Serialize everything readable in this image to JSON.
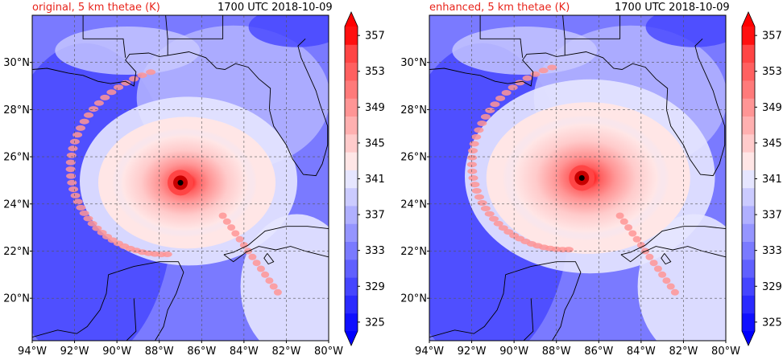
{
  "figure": {
    "panels": [
      {
        "title": "original, 5 km thetae (K)",
        "time": "1700 UTC 2018-10-09",
        "storm_center": {
          "lon": -87.0,
          "lat": 24.9
        },
        "storm_peak_K": 357
      },
      {
        "title": "enhanced, 5 km thetae (K)",
        "time": "1700 UTC 2018-10-09",
        "storm_center": {
          "lon": -86.8,
          "lat": 25.1
        },
        "storm_peak_K": 359
      }
    ],
    "x_axis": {
      "range": [
        -94,
        -80
      ],
      "ticks": [
        -94,
        -92,
        -90,
        -88,
        -86,
        -84,
        -82,
        -80
      ],
      "tick_labels": [
        "94°W",
        "92°W",
        "90°W",
        "88°W",
        "86°W",
        "84°W",
        "82°W",
        "80°W"
      ]
    },
    "y_axis": {
      "range": [
        18.2,
        32.0
      ],
      "ticks": [
        20,
        22,
        24,
        26,
        28,
        30
      ],
      "tick_labels": [
        "20°N",
        "22°N",
        "24°N",
        "26°N",
        "28°N",
        "30°N"
      ]
    },
    "colorbar": {
      "levels": [
        325,
        327,
        329,
        331,
        333,
        335,
        337,
        339,
        341,
        343,
        345,
        347,
        349,
        351,
        353,
        355,
        357
      ],
      "tick_labels": [
        "325",
        "329",
        "333",
        "337",
        "341",
        "345",
        "349",
        "353",
        "357"
      ],
      "colors": [
        "#1010ff",
        "#2a2aff",
        "#4545ff",
        "#6060ff",
        "#7a7aff",
        "#9595ff",
        "#b0b0ff",
        "#cbcbff",
        "#e6e6ff",
        "#ffe6e6",
        "#ffcbcb",
        "#ffb0b0",
        "#ff9595",
        "#ff7a7a",
        "#ff6060",
        "#ff4545",
        "#ff1010"
      ],
      "extend": "both"
    },
    "grid": "dashed",
    "marker_color": "#000000"
  }
}
